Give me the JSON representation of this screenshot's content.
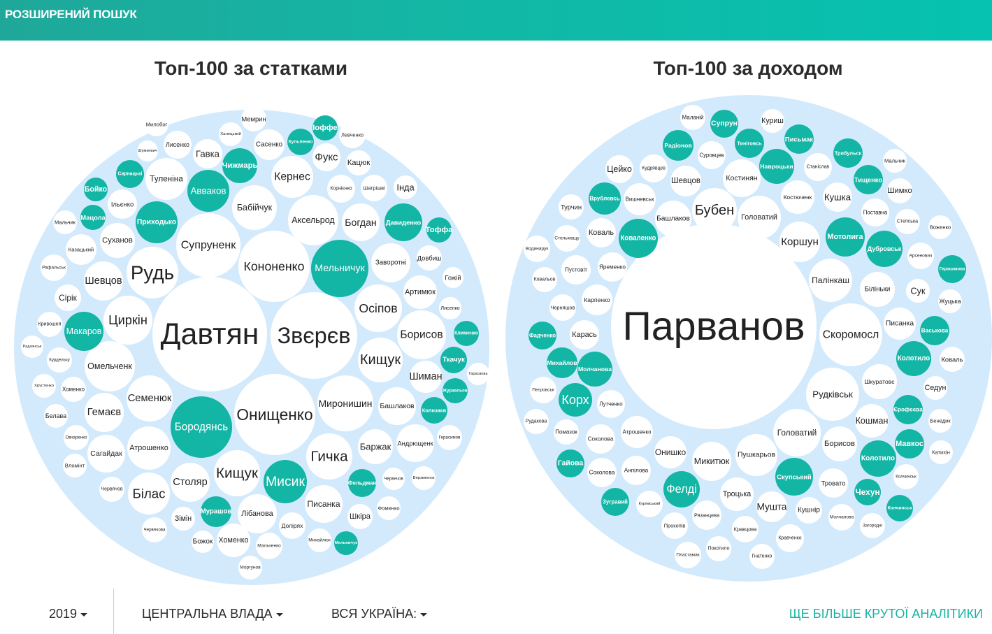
{
  "header": {
    "advanced_search": "РОЗШИРЕНИЙ ПОШУК"
  },
  "colors": {
    "teal": "#13b5a5",
    "ring": "#d3eafc",
    "white": "#ffffff"
  },
  "left_chart": {
    "title": "Топ-100 за статками",
    "bubbles": [
      {
        "t": "Давтян",
        "hl": false
      },
      {
        "t": "Звєрєв",
        "hl": false
      },
      {
        "t": "Онищенко",
        "hl": false
      },
      {
        "t": "Кононенко",
        "hl": false
      },
      {
        "t": "Мельничук",
        "hl": true
      },
      {
        "t": "Бородянсь",
        "hl": true
      },
      {
        "t": "Супруненк",
        "hl": false
      },
      {
        "t": "Миронишин",
        "hl": false
      },
      {
        "t": "Мисик",
        "hl": true
      },
      {
        "t": "Аксельрод",
        "hl": false
      },
      {
        "t": "Приходько",
        "hl": true
      },
      {
        "t": "Бабійчук",
        "hl": false
      },
      {
        "t": "Семенюк",
        "hl": false
      },
      {
        "t": "Атрошенко",
        "hl": false
      },
      {
        "t": "Авваков",
        "hl": true
      },
      {
        "t": "Давиденко",
        "hl": true
      },
      {
        "t": "Рудь",
        "hl": false
      },
      {
        "t": "Циркін",
        "hl": false
      },
      {
        "t": "Омельченк",
        "hl": false
      },
      {
        "t": "Кищук",
        "hl": false
      },
      {
        "t": "Осіпов",
        "hl": false
      },
      {
        "t": "Борисов",
        "hl": false
      },
      {
        "t": "Кищук",
        "hl": false
      },
      {
        "t": "Гичка",
        "hl": false
      },
      {
        "t": "Столяр",
        "hl": false
      },
      {
        "t": "Кернес",
        "hl": false
      },
      {
        "t": "Богдан",
        "hl": false
      },
      {
        "t": "Макаров",
        "hl": true
      },
      {
        "t": "Туленіна",
        "hl": false
      },
      {
        "t": "Заворотні",
        "hl": false
      },
      {
        "t": "Писанка",
        "hl": false
      },
      {
        "t": "Шевцов",
        "hl": false
      },
      {
        "t": "Гемаєв",
        "hl": false
      },
      {
        "t": "Білас",
        "hl": false
      },
      {
        "t": "Сагайдак",
        "hl": false
      },
      {
        "t": "Башлаков",
        "hl": false
      },
      {
        "t": "Баржак",
        "hl": false
      },
      {
        "t": "Шиман",
        "hl": false
      },
      {
        "t": "Лібанова",
        "hl": false
      },
      {
        "t": "Чижмарь",
        "hl": true
      },
      {
        "t": "Андрющенк",
        "hl": false
      },
      {
        "t": "Артимюк",
        "hl": false
      },
      {
        "t": "Суханов",
        "hl": false
      },
      {
        "t": "Хоменко",
        "hl": false
      },
      {
        "t": "Мурашов",
        "hl": true
      },
      {
        "t": "Колизаєв",
        "hl": true
      },
      {
        "t": "Фельдман",
        "hl": true
      },
      {
        "t": "Казацький",
        "hl": false
      },
      {
        "t": "Ткачук",
        "hl": true
      },
      {
        "t": "Мацола",
        "hl": true
      },
      {
        "t": "Сарнацькі",
        "hl": true
      },
      {
        "t": "Кульпенко",
        "hl": true
      },
      {
        "t": "Іоффе",
        "hl": true
      },
      {
        "t": "Корнієнко",
        "hl": false
      },
      {
        "t": "Шатрішві",
        "hl": false
      },
      {
        "t": "Довбиш",
        "hl": false
      },
      {
        "t": "Долірях",
        "hl": false
      },
      {
        "t": "Шкіра",
        "hl": false
      },
      {
        "t": "Фукс",
        "hl": false
      },
      {
        "t": "Сасенко",
        "hl": false
      },
      {
        "t": "Гавка",
        "hl": false
      },
      {
        "t": "Лисенко",
        "hl": false
      },
      {
        "t": "Ільєнко",
        "hl": false
      },
      {
        "t": "Рафальськ",
        "hl": false
      },
      {
        "t": "Сірік",
        "hl": false
      },
      {
        "t": "Кривошея",
        "hl": false
      },
      {
        "t": "Курдельчу",
        "hl": false
      },
      {
        "t": "Хрустенко",
        "hl": false
      },
      {
        "t": "Хоменко",
        "hl": false
      },
      {
        "t": "Белава",
        "hl": false
      },
      {
        "t": "Овчаренко",
        "hl": false
      },
      {
        "t": "Вломінт",
        "hl": false
      },
      {
        "t": "Червячов",
        "hl": false
      },
      {
        "t": "Червячова",
        "hl": false
      },
      {
        "t": "Зімін",
        "hl": false
      },
      {
        "t": "Божок",
        "hl": false
      },
      {
        "t": "Мальченко",
        "hl": false
      },
      {
        "t": "Моргунов",
        "hl": false
      },
      {
        "t": "Михайлюк",
        "hl": false
      },
      {
        "t": "Мельничук",
        "hl": true
      },
      {
        "t": "Фоменко",
        "hl": false
      },
      {
        "t": "Червячов",
        "hl": false
      },
      {
        "t": "Верзменюк",
        "hl": false
      },
      {
        "t": "Герасимов",
        "hl": false
      },
      {
        "t": "Журавльов",
        "hl": true
      },
      {
        "t": "Гарасвова",
        "hl": false
      },
      {
        "t": "Клименко",
        "hl": true
      },
      {
        "t": "Лисенко",
        "hl": false
      },
      {
        "t": "Гожій",
        "hl": false
      },
      {
        "t": "Тоффа",
        "hl": true
      },
      {
        "t": "Інда",
        "hl": false
      },
      {
        "t": "Кацюк",
        "hl": false
      },
      {
        "t": "Левченко",
        "hl": false
      },
      {
        "t": "Мемрин",
        "hl": false
      },
      {
        "t": "Халецький",
        "hl": false
      },
      {
        "t": "Милобог",
        "hl": false
      },
      {
        "t": "Шумкевич",
        "hl": false
      },
      {
        "t": "Бойко",
        "hl": true
      },
      {
        "t": "Мальчик",
        "hl": false
      },
      {
        "t": "Радзянськ",
        "hl": false
      }
    ]
  },
  "right_chart": {
    "title": "Топ-100 за доходом",
    "bubbles": [
      {
        "t": "Парванов",
        "hl": false
      },
      {
        "t": "Скоромосл",
        "hl": false
      },
      {
        "t": "Рудківськ",
        "hl": false
      },
      {
        "t": "Головатий",
        "hl": false
      },
      {
        "t": "Мотолига",
        "hl": true
      },
      {
        "t": "Палінкаш",
        "hl": false
      },
      {
        "t": "Коршун",
        "hl": false
      },
      {
        "t": "Головатий",
        "hl": false
      },
      {
        "t": "Бубен",
        "hl": false
      },
      {
        "t": "Дубровськ",
        "hl": true
      },
      {
        "t": "Коваленко",
        "hl": true
      },
      {
        "t": "Колотило",
        "hl": true
      },
      {
        "t": "Скупський",
        "hl": true
      },
      {
        "t": "Пушкарьов",
        "hl": false
      },
      {
        "t": "Навроцьки",
        "hl": true
      },
      {
        "t": "Молчанова",
        "hl": true
      },
      {
        "t": "Біліньки",
        "hl": false
      },
      {
        "t": "Фелді",
        "hl": true
      },
      {
        "t": "Колотило",
        "hl": true
      },
      {
        "t": "Борисов",
        "hl": false
      },
      {
        "t": "Шкуратовс",
        "hl": false
      },
      {
        "t": "Корх",
        "hl": true
      },
      {
        "t": "Костинян",
        "hl": false
      },
      {
        "t": "Башлаков",
        "hl": false
      },
      {
        "t": "Микитюк",
        "hl": false
      },
      {
        "t": "Врублевсь",
        "hl": true
      },
      {
        "t": "Писанка",
        "hl": false
      },
      {
        "t": "Кошман",
        "hl": false
      },
      {
        "t": "Михайлов",
        "hl": true
      },
      {
        "t": "Костюченк",
        "hl": false
      },
      {
        "t": "Радіонов",
        "hl": true
      },
      {
        "t": "Письмак",
        "hl": true
      },
      {
        "t": "Васькова",
        "hl": true
      },
      {
        "t": "Єрофєєва",
        "hl": true
      },
      {
        "t": "Мавкос",
        "hl": true
      },
      {
        "t": "Тищенко",
        "hl": true
      },
      {
        "t": "Троцька",
        "hl": false
      },
      {
        "t": "Вишневськ",
        "hl": false
      },
      {
        "t": "Кушка",
        "hl": false
      },
      {
        "t": "Шевцов",
        "hl": false
      },
      {
        "t": "Онишко",
        "hl": false
      },
      {
        "t": "Тиніговсь",
        "hl": true
      },
      {
        "t": "Супрун",
        "hl": true
      },
      {
        "t": "Суровцев",
        "hl": false
      },
      {
        "t": "Кудрявцев",
        "hl": false
      },
      {
        "t": "Станіслав",
        "hl": false
      },
      {
        "t": "Лутченко",
        "hl": false
      },
      {
        "t": "Атрошенко",
        "hl": false
      },
      {
        "t": "Карась",
        "hl": false
      },
      {
        "t": "Карпенко",
        "hl": false
      },
      {
        "t": "Яременко",
        "hl": false
      },
      {
        "t": "Пустовіт",
        "hl": false
      },
      {
        "t": "Коваль",
        "hl": false
      },
      {
        "t": "Фадченко",
        "hl": true
      },
      {
        "t": "Гайова",
        "hl": true
      },
      {
        "t": "Зугравий",
        "hl": true
      },
      {
        "t": "Тровато",
        "hl": false
      },
      {
        "t": "Мушта",
        "hl": false
      },
      {
        "t": "Чехун",
        "hl": true
      },
      {
        "t": "Колчинськ",
        "hl": true
      },
      {
        "t": "Трибульск",
        "hl": true
      },
      {
        "t": "Герасимова",
        "hl": true
      },
      {
        "t": "Поставна",
        "hl": false
      },
      {
        "t": "Шимко",
        "hl": false
      },
      {
        "t": "Мальчик",
        "hl": false
      },
      {
        "t": "Степська",
        "hl": false
      },
      {
        "t": "Воженко",
        "hl": false
      },
      {
        "t": "Арсенович",
        "hl": false
      },
      {
        "t": "Сук",
        "hl": false
      },
      {
        "t": "Жуцька",
        "hl": false
      },
      {
        "t": "Коваль",
        "hl": false
      },
      {
        "t": "Седун",
        "hl": false
      },
      {
        "t": "Бенедик",
        "hl": false
      },
      {
        "t": "Катихін",
        "hl": false
      },
      {
        "t": "Колчинськ",
        "hl": false
      },
      {
        "t": "Загородні",
        "hl": false
      },
      {
        "t": "Молчанова",
        "hl": false
      },
      {
        "t": "Кушнір",
        "hl": false
      },
      {
        "t": "Кравченко",
        "hl": false
      },
      {
        "t": "Гнатенко",
        "hl": false
      },
      {
        "t": "Кравцова",
        "hl": false
      },
      {
        "t": "Рязанцева",
        "hl": false
      },
      {
        "t": "Покотило",
        "hl": false
      },
      {
        "t": "Пластамак",
        "hl": false
      },
      {
        "t": "Прокопів",
        "hl": false
      },
      {
        "t": "Курявський",
        "hl": false
      },
      {
        "t": "Анпілова",
        "hl": false
      },
      {
        "t": "Соколова",
        "hl": false
      },
      {
        "t": "Соколова",
        "hl": false
      },
      {
        "t": "Помазок",
        "hl": false
      },
      {
        "t": "Рудакова",
        "hl": false
      },
      {
        "t": "Петровськ",
        "hl": false
      },
      {
        "t": "Черняшов",
        "hl": false
      },
      {
        "t": "Ковальов",
        "hl": false
      },
      {
        "t": "Водинарук",
        "hl": false
      },
      {
        "t": "Стельмащу",
        "hl": false
      },
      {
        "t": "Турчин",
        "hl": false
      },
      {
        "t": "Цейко",
        "hl": false
      },
      {
        "t": "Маланій",
        "hl": false
      },
      {
        "t": "Куриш",
        "hl": false
      }
    ]
  },
  "footer": {
    "year": "2019",
    "branch": "ЦЕНТРАЛЬНА ВЛАДА",
    "region": "ВСЯ УКРАЇНА:",
    "more_link": "ЩЕ БІЛЬШЕ КРУТОЇ АНАЛІТИКИ"
  }
}
